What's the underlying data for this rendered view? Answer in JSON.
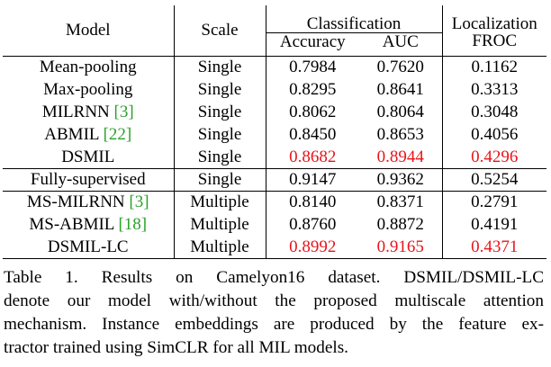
{
  "table": {
    "headers": {
      "model": "Model",
      "scale": "Scale",
      "classification": "Classification",
      "localization": "Localization",
      "accuracy": "Accuracy",
      "auc": "AUC",
      "froc": "FROC"
    },
    "rows": [
      {
        "model": "Mean-pooling",
        "cite": "",
        "scale": "Single",
        "accuracy": "0.7984",
        "auc": "0.7620",
        "froc": "0.1162"
      },
      {
        "model": "Max-pooling",
        "cite": "",
        "scale": "Single",
        "accuracy": "0.8295",
        "auc": "0.8641",
        "froc": "0.3313"
      },
      {
        "model": "MILRNN ",
        "cite": "[3]",
        "scale": "Single",
        "accuracy": "0.8062",
        "auc": "0.8064",
        "froc": "0.3048"
      },
      {
        "model": "ABMIL ",
        "cite": "[22]",
        "scale": "Single",
        "accuracy": "0.8450",
        "auc": "0.8653",
        "froc": "0.4056"
      },
      {
        "model": "DSMIL",
        "cite": "",
        "scale": "Single",
        "accuracy": "0.8682",
        "auc": "0.8944",
        "froc": "0.4296"
      },
      {
        "model": "Fully-supervised",
        "cite": "",
        "scale": "Single",
        "accuracy": "0.9147",
        "auc": "0.9362",
        "froc": "0.5254"
      },
      {
        "model": "MS-MILRNN ",
        "cite": "[3]",
        "scale": "Multiple",
        "accuracy": "0.8140",
        "auc": "0.8371",
        "froc": "0.2791"
      },
      {
        "model": "MS-ABMIL ",
        "cite": "[18]",
        "scale": "Multiple",
        "accuracy": "0.8760",
        "auc": "0.8872",
        "froc": "0.4191"
      },
      {
        "model": "DSMIL-LC",
        "cite": "",
        "scale": "Multiple",
        "accuracy": "0.8992",
        "auc": "0.9165",
        "froc": "0.4371"
      }
    ],
    "highlight_color": "#e8141a",
    "citation_color": "#2aa02a"
  },
  "caption": {
    "lines": [
      "Table 1.  Results on Camelyon16 dataset.  DSMIL/DSMIL-LC",
      "denote our model with/without the proposed multiscale attention",
      "mechanism. Instance embeddings are produced by the feature ex-",
      "tractor trained using SimCLR for all MIL models."
    ]
  }
}
